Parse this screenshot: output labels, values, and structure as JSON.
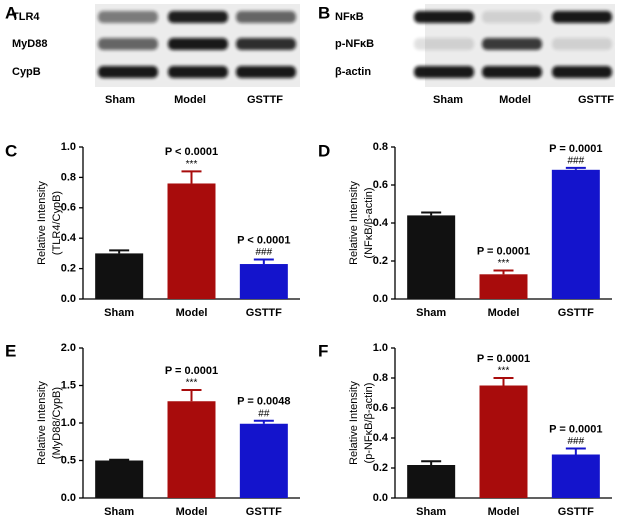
{
  "blots": [
    {
      "letter": "A",
      "rows": [
        "TLR4",
        "MyD88",
        "CypB"
      ],
      "lanes": [
        "Sham",
        "Model",
        "GSTTF"
      ]
    },
    {
      "letter": "B",
      "rows": [
        "NFκB",
        "p-NFκB",
        "β-actin"
      ],
      "lanes": [
        "Sham",
        "Model",
        "GSTTF"
      ]
    }
  ],
  "chart_data": [
    {
      "type": "bar",
      "letter": "C",
      "ylabel": [
        "Relative Intensity",
        "(TLR4/CypB)"
      ],
      "categories": [
        "Sham",
        "Model",
        "GSTTF"
      ],
      "values": [
        0.3,
        0.76,
        0.23
      ],
      "errors": [
        0.02,
        0.08,
        0.03
      ],
      "colors": [
        "#111111",
        "#a80c0c",
        "#1414cc"
      ],
      "annotations": [
        null,
        [
          "P < 0.0001",
          "***"
        ],
        [
          "P < 0.0001",
          "###"
        ]
      ],
      "ylim": [
        0,
        1.0
      ],
      "yticks": [
        {
          "value": 0,
          "label": "0.0"
        },
        0.2,
        0.4,
        0.6,
        0.8,
        {
          "value": 1.0,
          "label": "1.0"
        }
      ]
    },
    {
      "type": "bar",
      "letter": "D",
      "ylabel": [
        "Relative Intensity",
        "(NFκB/β-actin)"
      ],
      "categories": [
        "Sham",
        "Model",
        "GSTTF"
      ],
      "values": [
        0.44,
        0.13,
        0.68
      ],
      "errors": [
        0.015,
        0.02,
        0.01
      ],
      "colors": [
        "#111111",
        "#a80c0c",
        "#1414cc"
      ],
      "annotations": [
        null,
        [
          "P = 0.0001",
          "***"
        ],
        [
          "P = 0.0001",
          "###"
        ]
      ],
      "ylim": [
        0,
        0.8
      ],
      "yticks": [
        {
          "value": 0,
          "label": "0.0"
        },
        0.2,
        0.4,
        0.6,
        0.8
      ]
    },
    {
      "type": "bar",
      "letter": "E",
      "ylabel": [
        "Relative Intensity",
        "(MyD88/CypB)"
      ],
      "categories": [
        "Sham",
        "Model",
        "GSTTF"
      ],
      "values": [
        0.5,
        1.29,
        0.99
      ],
      "errors": [
        0.01,
        0.15,
        0.04
      ],
      "colors": [
        "#111111",
        "#a80c0c",
        "#1414cc"
      ],
      "annotations": [
        null,
        [
          "P = 0.0001",
          "***"
        ],
        [
          "P = 0.0048",
          "##"
        ]
      ],
      "ylim": [
        0,
        2.0
      ],
      "yticks": [
        {
          "value": 0,
          "label": "0.0"
        },
        0.5,
        {
          "value": 1.0,
          "label": "1.0"
        },
        1.5,
        {
          "value": 2.0,
          "label": "2.0"
        }
      ]
    },
    {
      "type": "bar",
      "letter": "F",
      "ylabel": [
        "Relative Intensity",
        "(p-NFκB/β-actin)"
      ],
      "categories": [
        "Sham",
        "Model",
        "GSTTF"
      ],
      "values": [
        0.22,
        0.75,
        0.29
      ],
      "errors": [
        0.025,
        0.05,
        0.04
      ],
      "colors": [
        "#111111",
        "#a80c0c",
        "#1414cc"
      ],
      "annotations": [
        null,
        [
          "P = 0.0001",
          "***"
        ],
        [
          "P = 0.0001",
          "###"
        ]
      ],
      "ylim": [
        0,
        1.0
      ],
      "yticks": [
        {
          "value": 0,
          "label": "0.0"
        },
        0.2,
        0.4,
        0.6,
        0.8,
        {
          "value": 1.0,
          "label": "1.0"
        }
      ]
    }
  ]
}
